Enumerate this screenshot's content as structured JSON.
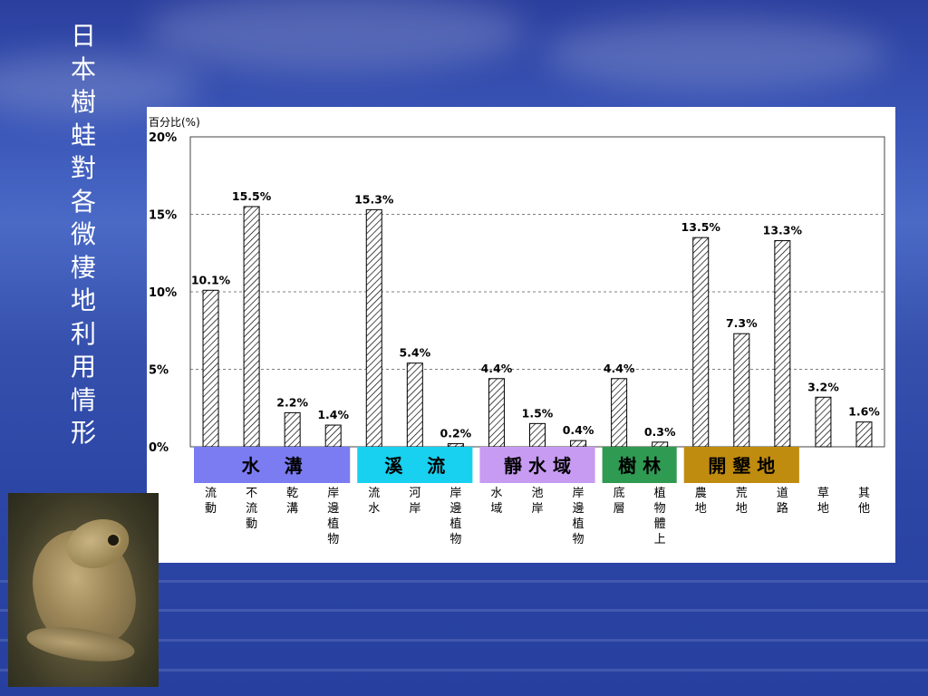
{
  "slide": {
    "title": "日本樹蛙對各微棲地利用情形",
    "photo_subject": "frog-photo"
  },
  "chart_data": {
    "type": "bar",
    "ylabel": "百分比(%)",
    "ylim": [
      0,
      20
    ],
    "yticks": [
      0,
      5,
      10,
      15,
      20
    ],
    "ytick_labels": [
      "0%",
      "5%",
      "10%",
      "15%",
      "20%"
    ],
    "grid": "dashed horizontal at 5% intervals",
    "bar_style": "diagonal hatch, black outline",
    "categories": [
      "流動",
      "不流動",
      "乾溝",
      "岸邊植物",
      "流水",
      "河岸",
      "岸邊植物",
      "水域",
      "池岸",
      "岸邊植物",
      "底層",
      "植物體上",
      "農地",
      "荒地",
      "道路",
      "草地",
      "其他"
    ],
    "values": [
      10.1,
      15.5,
      2.2,
      1.4,
      15.3,
      5.4,
      0.2,
      4.4,
      1.5,
      0.4,
      4.4,
      0.3,
      13.5,
      7.3,
      13.3,
      3.2,
      1.6
    ],
    "value_labels": [
      "10.1%",
      "15.5%",
      "2.2%",
      "1.4%",
      "15.3%",
      "5.4%",
      "0.2%",
      "4.4%",
      "1.5%",
      "0.4%",
      "4.4%",
      "0.3%",
      "13.5%",
      "7.3%",
      "13.3%",
      "3.2%",
      "1.6%"
    ],
    "groups": [
      {
        "label": "水　 溝",
        "start": 0,
        "end": 3,
        "color": "#7b7cf2"
      },
      {
        "label": "溪　 流",
        "start": 4,
        "end": 6,
        "color": "#18d0f0"
      },
      {
        "label": "靜 水 域",
        "start": 7,
        "end": 9,
        "color": "#c89bf2"
      },
      {
        "label": "樹 林",
        "start": 10,
        "end": 11,
        "color": "#2f9a52"
      },
      {
        "label": "開 墾 地",
        "start": 12,
        "end": 14,
        "color": "#c08c10"
      }
    ]
  }
}
